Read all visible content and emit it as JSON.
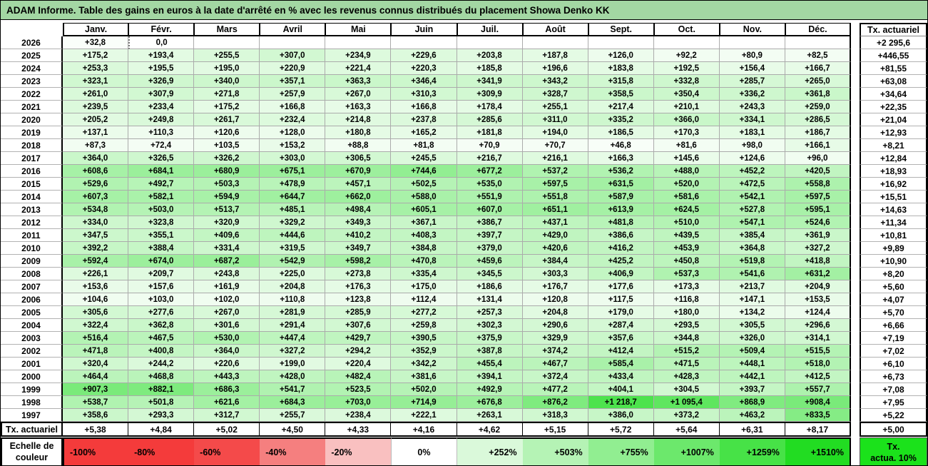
{
  "title": "ADAM Informe. Table des gains en euros à la date d'arrêté en % avec les revenus connus distribués du placement Showa Denko KK",
  "colors": {
    "title_bg": "#A3D7A3",
    "zero_cell": "#FFFFFF",
    "max_green": "#22DC22",
    "tx_box_green": "#1BE21B",
    "grid_line": "#ABABAB"
  },
  "chart_data": {
    "type": "heatmap",
    "title": "ADAM Informe. Table des gains en euros à la date d'arrêté en % avec les revenus connus distribués du placement Showa Denko KK",
    "columns": [
      "Janv.",
      "Févr.",
      "Mars",
      "Avril",
      "Mai",
      "Juin",
      "Juil.",
      "Août",
      "Sept.",
      "Oct.",
      "Nov.",
      "Déc."
    ],
    "right_column_header": "Tx. actuariel",
    "color_scale_domain": [
      0,
      1510
    ],
    "rows": [
      {
        "year": "2026",
        "values": [
          "+32,8",
          "0,0",
          "",
          "",
          "",
          "",
          "",
          "",
          "",
          "",
          "",
          ""
        ],
        "tx": "+2 295,6"
      },
      {
        "year": "2025",
        "values": [
          "+175,2",
          "+193,4",
          "+255,5",
          "+307,0",
          "+234,9",
          "+229,6",
          "+203,8",
          "+187,8",
          "+126,0",
          "+92,2",
          "+80,9",
          "+82,5"
        ],
        "tx": "+446,55"
      },
      {
        "year": "2024",
        "values": [
          "+253,3",
          "+195,5",
          "+195,0",
          "+220,9",
          "+221,4",
          "+220,3",
          "+185,8",
          "+196,6",
          "+183,8",
          "+192,5",
          "+156,4",
          "+166,7"
        ],
        "tx": "+81,55"
      },
      {
        "year": "2023",
        "values": [
          "+323,1",
          "+326,9",
          "+340,0",
          "+357,1",
          "+363,3",
          "+346,4",
          "+341,9",
          "+343,2",
          "+315,8",
          "+332,8",
          "+285,7",
          "+265,0"
        ],
        "tx": "+63,08"
      },
      {
        "year": "2022",
        "values": [
          "+261,0",
          "+307,9",
          "+271,8",
          "+257,9",
          "+267,0",
          "+310,3",
          "+309,9",
          "+328,7",
          "+358,5",
          "+350,4",
          "+336,2",
          "+361,8"
        ],
        "tx": "+34,64"
      },
      {
        "year": "2021",
        "values": [
          "+239,5",
          "+233,4",
          "+175,2",
          "+166,8",
          "+163,3",
          "+166,8",
          "+178,4",
          "+255,1",
          "+217,4",
          "+210,1",
          "+243,3",
          "+259,0"
        ],
        "tx": "+22,35"
      },
      {
        "year": "2020",
        "values": [
          "+205,2",
          "+249,8",
          "+261,7",
          "+232,4",
          "+214,8",
          "+237,8",
          "+285,6",
          "+311,0",
          "+335,2",
          "+366,0",
          "+334,1",
          "+286,5"
        ],
        "tx": "+21,04"
      },
      {
        "year": "2019",
        "values": [
          "+137,1",
          "+110,3",
          "+120,6",
          "+128,0",
          "+180,8",
          "+165,2",
          "+181,8",
          "+194,0",
          "+186,5",
          "+170,3",
          "+183,1",
          "+186,7"
        ],
        "tx": "+12,93"
      },
      {
        "year": "2018",
        "values": [
          "+87,3",
          "+72,4",
          "+103,5",
          "+153,2",
          "+88,8",
          "+81,8",
          "+70,9",
          "+70,7",
          "+46,8",
          "+81,6",
          "+98,0",
          "+166,1"
        ],
        "tx": "+8,21"
      },
      {
        "year": "2017",
        "values": [
          "+364,0",
          "+326,5",
          "+326,2",
          "+303,0",
          "+306,5",
          "+245,5",
          "+216,7",
          "+216,1",
          "+166,3",
          "+145,6",
          "+124,6",
          "+96,0"
        ],
        "tx": "+12,84"
      },
      {
        "year": "2016",
        "values": [
          "+608,6",
          "+684,1",
          "+680,9",
          "+675,1",
          "+670,9",
          "+744,6",
          "+677,2",
          "+537,2",
          "+536,2",
          "+488,0",
          "+452,2",
          "+420,5"
        ],
        "tx": "+18,93"
      },
      {
        "year": "2015",
        "values": [
          "+529,6",
          "+492,7",
          "+503,3",
          "+478,9",
          "+457,1",
          "+502,5",
          "+535,0",
          "+597,5",
          "+631,5",
          "+520,0",
          "+472,5",
          "+558,8"
        ],
        "tx": "+16,92"
      },
      {
        "year": "2014",
        "values": [
          "+607,3",
          "+582,1",
          "+594,9",
          "+644,7",
          "+662,0",
          "+588,0",
          "+551,9",
          "+551,8",
          "+587,9",
          "+581,6",
          "+542,1",
          "+597,5"
        ],
        "tx": "+15,51"
      },
      {
        "year": "2013",
        "values": [
          "+534,8",
          "+503,0",
          "+513,7",
          "+485,1",
          "+498,4",
          "+605,1",
          "+607,0",
          "+651,1",
          "+613,9",
          "+624,5",
          "+527,8",
          "+595,1"
        ],
        "tx": "+14,63"
      },
      {
        "year": "2012",
        "values": [
          "+334,0",
          "+323,8",
          "+320,9",
          "+329,2",
          "+349,3",
          "+367,1",
          "+386,7",
          "+437,1",
          "+481,8",
          "+510,0",
          "+547,1",
          "+524,6"
        ],
        "tx": "+11,34"
      },
      {
        "year": "2011",
        "values": [
          "+347,5",
          "+355,1",
          "+409,6",
          "+444,6",
          "+410,2",
          "+408,3",
          "+397,7",
          "+429,0",
          "+386,6",
          "+439,5",
          "+385,4",
          "+361,9"
        ],
        "tx": "+10,81"
      },
      {
        "year": "2010",
        "values": [
          "+392,2",
          "+388,4",
          "+331,4",
          "+319,5",
          "+349,7",
          "+384,8",
          "+379,0",
          "+420,6",
          "+416,2",
          "+453,9",
          "+364,8",
          "+327,2"
        ],
        "tx": "+9,89"
      },
      {
        "year": "2009",
        "values": [
          "+592,4",
          "+674,0",
          "+687,2",
          "+542,9",
          "+598,2",
          "+470,8",
          "+459,6",
          "+384,4",
          "+425,2",
          "+450,8",
          "+519,8",
          "+418,8"
        ],
        "tx": "+10,90"
      },
      {
        "year": "2008",
        "values": [
          "+226,1",
          "+209,7",
          "+243,8",
          "+225,0",
          "+273,8",
          "+335,4",
          "+345,5",
          "+303,3",
          "+406,9",
          "+537,3",
          "+541,6",
          "+631,2"
        ],
        "tx": "+8,20"
      },
      {
        "year": "2007",
        "values": [
          "+153,6",
          "+157,6",
          "+161,9",
          "+204,8",
          "+176,3",
          "+175,0",
          "+186,6",
          "+176,7",
          "+177,6",
          "+173,3",
          "+213,7",
          "+204,9"
        ],
        "tx": "+5,60"
      },
      {
        "year": "2006",
        "values": [
          "+104,6",
          "+103,0",
          "+102,0",
          "+110,8",
          "+123,8",
          "+112,4",
          "+131,4",
          "+120,8",
          "+117,5",
          "+116,8",
          "+147,1",
          "+153,5"
        ],
        "tx": "+4,07"
      },
      {
        "year": "2005",
        "values": [
          "+305,6",
          "+277,6",
          "+267,0",
          "+281,9",
          "+285,9",
          "+277,2",
          "+257,3",
          "+204,8",
          "+179,0",
          "+180,0",
          "+134,2",
          "+124,4"
        ],
        "tx": "+5,70"
      },
      {
        "year": "2004",
        "values": [
          "+322,4",
          "+362,8",
          "+301,6",
          "+291,4",
          "+307,6",
          "+259,8",
          "+302,3",
          "+290,6",
          "+287,4",
          "+293,5",
          "+305,5",
          "+296,6"
        ],
        "tx": "+6,66"
      },
      {
        "year": "2003",
        "values": [
          "+516,4",
          "+467,5",
          "+530,0",
          "+447,4",
          "+429,7",
          "+390,5",
          "+375,9",
          "+329,9",
          "+357,6",
          "+344,8",
          "+326,0",
          "+314,1"
        ],
        "tx": "+7,19"
      },
      {
        "year": "2002",
        "values": [
          "+471,8",
          "+400,8",
          "+364,0",
          "+327,2",
          "+294,2",
          "+352,9",
          "+387,8",
          "+374,2",
          "+412,4",
          "+515,2",
          "+509,4",
          "+515,5"
        ],
        "tx": "+7,02"
      },
      {
        "year": "2001",
        "values": [
          "+320,4",
          "+244,2",
          "+220,6",
          "+199,0",
          "+220,4",
          "+342,2",
          "+455,4",
          "+467,7",
          "+585,4",
          "+471,5",
          "+448,1",
          "+518,0"
        ],
        "tx": "+6,10"
      },
      {
        "year": "2000",
        "values": [
          "+464,4",
          "+468,8",
          "+443,3",
          "+428,0",
          "+482,4",
          "+381,6",
          "+394,1",
          "+372,4",
          "+433,4",
          "+428,3",
          "+442,1",
          "+412,5"
        ],
        "tx": "+6,73"
      },
      {
        "year": "1999",
        "values": [
          "+907,3",
          "+882,1",
          "+686,3",
          "+541,7",
          "+523,5",
          "+502,0",
          "+492,9",
          "+477,2",
          "+404,1",
          "+304,5",
          "+393,7",
          "+557,7"
        ],
        "tx": "+7,08"
      },
      {
        "year": "1998",
        "values": [
          "+538,7",
          "+501,8",
          "+621,6",
          "+684,3",
          "+703,0",
          "+714,9",
          "+676,8",
          "+876,2",
          "+1 218,7",
          "+1 095,4",
          "+868,9",
          "+908,4"
        ],
        "tx": "+7,95"
      },
      {
        "year": "1997",
        "values": [
          "+358,6",
          "+293,3",
          "+312,7",
          "+255,7",
          "+238,4",
          "+222,1",
          "+263,1",
          "+318,3",
          "+386,0",
          "+373,2",
          "+463,2",
          "+833,5"
        ],
        "tx": "+5,22"
      }
    ],
    "footer": {
      "label": "Tx. actuariel",
      "values": [
        "+5,38",
        "+4,84",
        "+5,02",
        "+4,50",
        "+4,33",
        "+4,16",
        "+4,62",
        "+5,15",
        "+5,72",
        "+5,64",
        "+6,31",
        "+8,17"
      ],
      "tx": "+5,00"
    }
  },
  "legend": {
    "label": "Echelle de couleur",
    "entries": [
      {
        "label": "-100%",
        "color": "#F43B3B",
        "sign": "neg"
      },
      {
        "label": "-80%",
        "color": "#F43B3B",
        "sign": "neg"
      },
      {
        "label": "-60%",
        "color": "#F44A4A",
        "sign": "neg"
      },
      {
        "label": "-40%",
        "color": "#F57F7F",
        "sign": "neg"
      },
      {
        "label": "-20%",
        "color": "#F9C0C0",
        "sign": "neg"
      },
      {
        "label": "0%",
        "color": "#FFFFFF",
        "sign": "zero"
      },
      {
        "label": "+252%",
        "color": "#DAF9DA",
        "sign": "pos"
      },
      {
        "label": "+503%",
        "color": "#B5F3B5",
        "sign": "pos"
      },
      {
        "label": "+755%",
        "color": "#91EE91",
        "sign": "pos"
      },
      {
        "label": "+1007%",
        "color": "#6CE86C",
        "sign": "pos"
      },
      {
        "label": "+1259%",
        "color": "#47E247",
        "sign": "pos"
      },
      {
        "label": "+1510%",
        "color": "#22DC22",
        "sign": "pos"
      }
    ],
    "tx_box": {
      "line1": "Tx.",
      "line2": "actua. 10%",
      "color": "#1BE21B"
    }
  }
}
